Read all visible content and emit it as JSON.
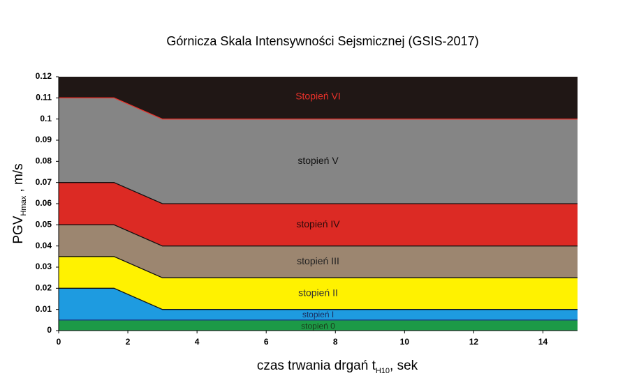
{
  "chart_data": {
    "type": "area",
    "title": "Górnicza Skala Intensywności Sejsmicznej (GSIS-2017)",
    "xlabel": {
      "main": "czas trwania drgań t",
      "sub": "H10",
      "suffix": ", sek"
    },
    "ylabel": {
      "main": "PGV",
      "sub": "Hmax",
      "suffix": " , m/s"
    },
    "xlim": [
      0,
      15
    ],
    "ylim": [
      0,
      0.12
    ],
    "x_ticks": [
      0,
      2,
      4,
      6,
      8,
      10,
      12,
      14
    ],
    "y_ticks": [
      0,
      0.01,
      0.02,
      0.03,
      0.04,
      0.05,
      0.06,
      0.07,
      0.08,
      0.09,
      0.1,
      0.11,
      0.12
    ],
    "y_tick_labels": [
      "0",
      "0.01",
      "0.02",
      "0.03",
      "0.04",
      "0.05",
      "0.06",
      "0.07",
      "0.08",
      "0.09",
      "0.1",
      "0.11",
      "0.12"
    ],
    "x_tick_labels": [
      "0",
      "2",
      "4",
      "6",
      "8",
      "10",
      "12",
      "14"
    ],
    "x_breakpoints": [
      0,
      1.6,
      3,
      15
    ],
    "grid": false,
    "bands": [
      {
        "label": "stopień 0",
        "color": "#1c9a47",
        "label_color": "#1a3a1a",
        "lower": [
          0,
          0,
          0,
          0
        ],
        "upper": [
          0.005,
          0.005,
          0.005,
          0.005
        ],
        "label_pos": [
          7.5,
          0.0018
        ]
      },
      {
        "label": "stopień I",
        "color": "#1e9be0",
        "label_color": "#1a2a5a",
        "lower": [
          0.005,
          0.005,
          0.005,
          0.005
        ],
        "upper": [
          0.02,
          0.02,
          0.01,
          0.01
        ],
        "label_pos": [
          7.5,
          0.0073
        ]
      },
      {
        "label": "stopień II",
        "color": "#fff200",
        "label_color": "#333333",
        "lower": [
          0.02,
          0.02,
          0.01,
          0.01
        ],
        "upper": [
          0.035,
          0.035,
          0.025,
          0.025
        ],
        "label_pos": [
          7.5,
          0.0175
        ]
      },
      {
        "label": "stopień III",
        "color": "#9c8670",
        "label_color": "#222222",
        "lower": [
          0.035,
          0.035,
          0.025,
          0.025
        ],
        "upper": [
          0.05,
          0.05,
          0.04,
          0.04
        ],
        "label_pos": [
          7.5,
          0.0325
        ]
      },
      {
        "label": "stopień IV",
        "color": "#dc2a24",
        "label_color": "#2a0a0a",
        "lower": [
          0.05,
          0.05,
          0.04,
          0.04
        ],
        "upper": [
          0.07,
          0.07,
          0.06,
          0.06
        ],
        "label_pos": [
          7.5,
          0.05
        ]
      },
      {
        "label": "stopień V",
        "color": "#858585",
        "label_color": "#111111",
        "lower": [
          0.07,
          0.07,
          0.06,
          0.06
        ],
        "upper": [
          0.11,
          0.11,
          0.1,
          0.1
        ],
        "label_pos": [
          7.5,
          0.08
        ]
      },
      {
        "label": "Stopień VI",
        "color": "#201715",
        "label_color": "#e8312a",
        "lower": [
          0.11,
          0.11,
          0.1,
          0.1
        ],
        "upper": [
          0.12,
          0.12,
          0.12,
          0.12
        ],
        "label_pos": [
          7.5,
          0.1105
        ]
      }
    ],
    "boundary_colors": [
      "#1c3b8a",
      "#111111",
      "#111111",
      "#111111",
      "#111111",
      "#e8312a"
    ]
  }
}
